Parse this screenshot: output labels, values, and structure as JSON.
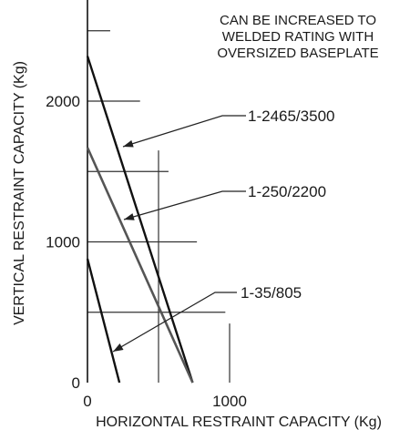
{
  "chart_data": {
    "type": "line",
    "xlabel": "HORIZONTAL RESTRAINT CAPACITY (Kg)",
    "ylabel": "VERTICAL RESTRAINT CAPACITY (Kg)",
    "xlim": [
      0,
      1000
    ],
    "ylim": [
      0,
      2500
    ],
    "x_ticks": [
      0,
      1000
    ],
    "y_ticks": [
      0,
      1000,
      2000
    ],
    "grid": true,
    "annotation": [
      "CAN BE INCREASED TO",
      "WELDED RATING WITH",
      "OVERSIZED BASEPLATE"
    ],
    "series": [
      {
        "name": "1-2465/3500",
        "x": [
          0,
          740
        ],
        "y": [
          2320,
          0
        ],
        "color": "#111111"
      },
      {
        "name": "1-250/2200",
        "x": [
          0,
          740
        ],
        "y": [
          1670,
          0
        ],
        "color": "#555555"
      },
      {
        "name": "1-35/805",
        "x": [
          0,
          225
        ],
        "y": [
          880,
          0
        ],
        "color": "#111111"
      }
    ]
  }
}
